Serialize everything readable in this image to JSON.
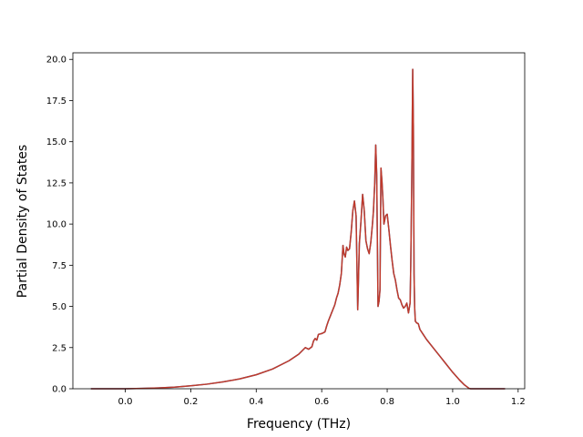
{
  "chart_data": {
    "type": "line",
    "title": "",
    "xlabel": "Frequency (THz)",
    "ylabel": "Partial Density of States",
    "xlim": [
      -0.16,
      1.22
    ],
    "ylim": [
      0,
      20.4
    ],
    "grid": false,
    "legend": "none",
    "xticks": [
      "0.0",
      "0.2",
      "0.4",
      "0.6",
      "0.8",
      "1.0",
      "1.2"
    ],
    "yticks": [
      "0.0",
      "2.5",
      "5.0",
      "7.5",
      "10.0",
      "12.5",
      "15.0",
      "17.5",
      "20.0"
    ],
    "colors": {
      "line_under": "#2e7ebd",
      "line_top": "#c0392b"
    },
    "series": [
      {
        "x": [
          -0.105,
          0.0,
          0.05,
          0.1,
          0.15,
          0.2,
          0.25,
          0.3,
          0.35,
          0.4,
          0.45,
          0.5,
          0.53,
          0.55,
          0.56,
          0.57,
          0.575,
          0.58,
          0.585,
          0.59,
          0.6,
          0.61,
          0.615,
          0.62,
          0.63,
          0.64,
          0.645,
          0.65,
          0.655,
          0.66,
          0.665,
          0.668,
          0.672,
          0.676,
          0.68,
          0.685,
          0.69,
          0.695,
          0.7,
          0.705,
          0.71,
          0.715,
          0.72,
          0.725,
          0.73,
          0.735,
          0.74,
          0.745,
          0.75,
          0.755,
          0.758,
          0.762,
          0.765,
          0.768,
          0.772,
          0.775,
          0.778,
          0.781,
          0.784,
          0.787,
          0.79,
          0.795,
          0.8,
          0.805,
          0.81,
          0.815,
          0.82,
          0.825,
          0.83,
          0.835,
          0.84,
          0.845,
          0.85,
          0.855,
          0.86,
          0.865,
          0.87,
          0.872,
          0.875,
          0.878,
          0.88,
          0.882,
          0.884,
          0.886,
          0.888,
          0.89,
          0.895,
          0.9,
          0.91,
          0.92,
          0.94,
          0.96,
          0.98,
          1.0,
          1.02,
          1.035,
          1.045,
          1.05,
          1.055,
          1.06,
          1.1,
          1.16
        ],
        "y": [
          0.0,
          0.0,
          0.02,
          0.05,
          0.1,
          0.18,
          0.28,
          0.42,
          0.6,
          0.85,
          1.2,
          1.7,
          2.1,
          2.5,
          2.4,
          2.55,
          2.9,
          3.05,
          2.95,
          3.3,
          3.35,
          3.45,
          3.8,
          4.1,
          4.6,
          5.1,
          5.5,
          5.8,
          6.3,
          7.0,
          8.7,
          8.2,
          8.0,
          8.6,
          8.4,
          8.5,
          9.5,
          10.8,
          11.4,
          10.5,
          4.8,
          8.8,
          10.2,
          11.8,
          10.8,
          9.0,
          8.5,
          8.2,
          8.9,
          10.0,
          10.8,
          12.5,
          14.8,
          13.0,
          5.0,
          5.3,
          6.0,
          13.4,
          12.6,
          11.5,
          10.0,
          10.5,
          10.6,
          9.7,
          8.7,
          7.8,
          7.0,
          6.6,
          6.0,
          5.5,
          5.4,
          5.1,
          4.9,
          5.0,
          5.2,
          4.6,
          5.2,
          7.5,
          12.5,
          19.4,
          16.0,
          7.0,
          4.9,
          4.1,
          4.05,
          4.0,
          3.95,
          3.6,
          3.3,
          3.0,
          2.5,
          2.0,
          1.5,
          1.0,
          0.55,
          0.25,
          0.1,
          0.02,
          0.0,
          0.0,
          0.0,
          0.0
        ]
      }
    ]
  }
}
